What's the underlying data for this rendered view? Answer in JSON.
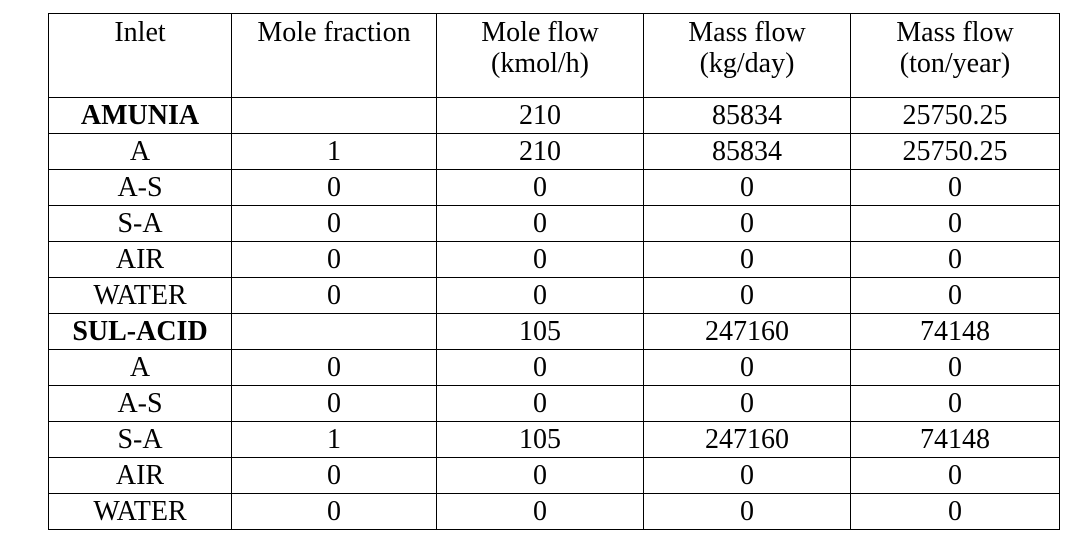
{
  "headers": [
    {
      "line1": "Inlet",
      "line2": ""
    },
    {
      "line1": "Mole fraction",
      "line2": ""
    },
    {
      "line1": "Mole flow",
      "line2": "(kmol/h)"
    },
    {
      "line1": "Mass flow",
      "line2": "(kg/day)"
    },
    {
      "line1": "Mass flow",
      "line2": "(ton/year)"
    }
  ],
  "rows": [
    {
      "name": "AMUNIA",
      "mole_fraction": "",
      "mole_flow": "210",
      "mass_flow_kg_day": "85834",
      "mass_flow_ton_year": "25750.25"
    },
    {
      "name": "A",
      "mole_fraction": "1",
      "mole_flow": "210",
      "mass_flow_kg_day": "85834",
      "mass_flow_ton_year": "25750.25"
    },
    {
      "name": "A-S",
      "mole_fraction": "0",
      "mole_flow": "0",
      "mass_flow_kg_day": "0",
      "mass_flow_ton_year": "0"
    },
    {
      "name": "S-A",
      "mole_fraction": "0",
      "mole_flow": "0",
      "mass_flow_kg_day": "0",
      "mass_flow_ton_year": "0"
    },
    {
      "name": "AIR",
      "mole_fraction": "0",
      "mole_flow": "0",
      "mass_flow_kg_day": "0",
      "mass_flow_ton_year": "0"
    },
    {
      "name": "WATER",
      "mole_fraction": "0",
      "mole_flow": "0",
      "mass_flow_kg_day": "0",
      "mass_flow_ton_year": "0"
    },
    {
      "name": "SUL-ACID",
      "mole_fraction": "",
      "mole_flow": "105",
      "mass_flow_kg_day": "247160",
      "mass_flow_ton_year": "74148"
    },
    {
      "name": "A",
      "mole_fraction": "0",
      "mole_flow": "0",
      "mass_flow_kg_day": "0",
      "mass_flow_ton_year": "0"
    },
    {
      "name": "A-S",
      "mole_fraction": "0",
      "mole_flow": "0",
      "mass_flow_kg_day": "0",
      "mass_flow_ton_year": "0"
    },
    {
      "name": "S-A",
      "mole_fraction": "1",
      "mole_flow": "105",
      "mass_flow_kg_day": "247160",
      "mass_flow_ton_year": "74148"
    },
    {
      "name": "AIR",
      "mole_fraction": "0",
      "mole_flow": "0",
      "mass_flow_kg_day": "0",
      "mass_flow_ton_year": "0"
    },
    {
      "name": "WATER",
      "mole_fraction": "0",
      "mole_flow": "0",
      "mass_flow_kg_day": "0",
      "mass_flow_ton_year": "0"
    }
  ]
}
